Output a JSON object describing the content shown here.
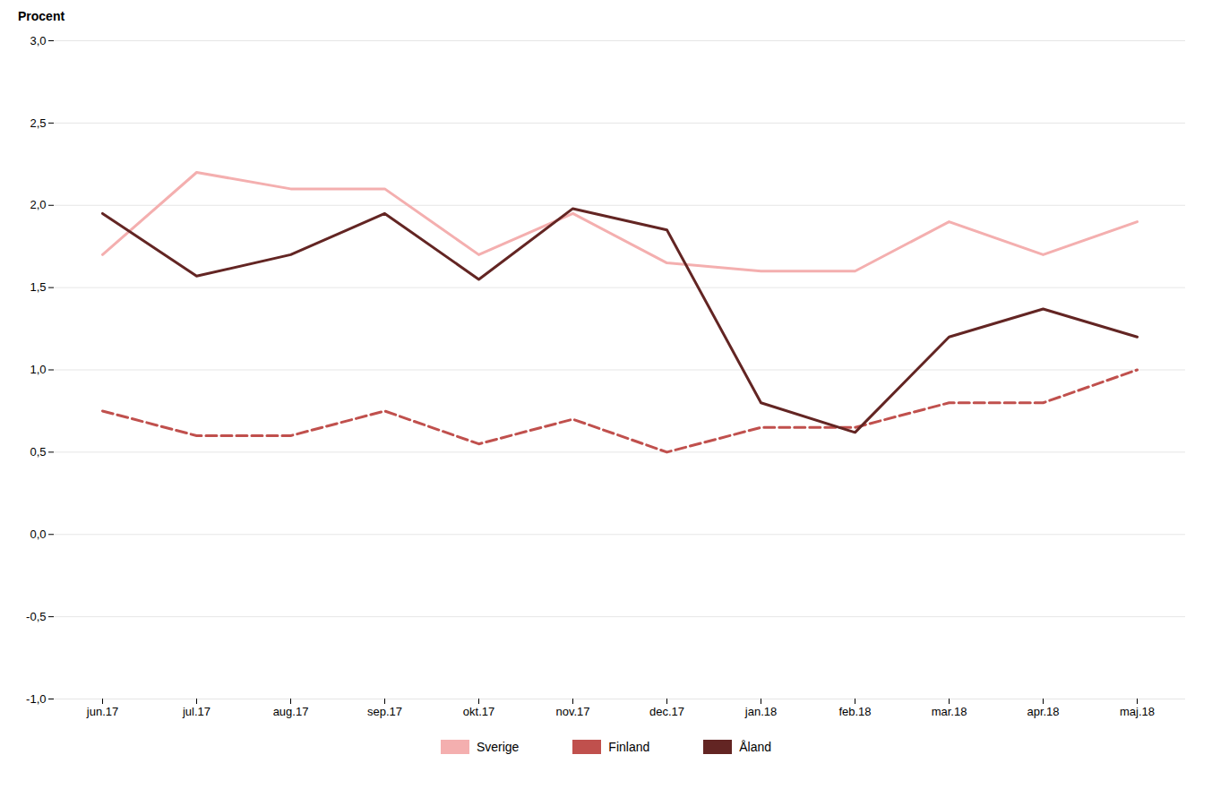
{
  "chart_data": {
    "type": "line",
    "ylabel": "Procent",
    "categories": [
      "jun.17",
      "jul.17",
      "aug.17",
      "sep.17",
      "okt.17",
      "nov.17",
      "dec.17",
      "jan.18",
      "feb.18",
      "mar.18",
      "apr.18",
      "maj.18"
    ],
    "series": [
      {
        "name": "Sverige",
        "color": "#F4AFAF",
        "line_style": "solid",
        "values": [
          1.7,
          2.2,
          2.1,
          2.1,
          1.7,
          1.95,
          1.65,
          1.6,
          1.6,
          1.9,
          1.7,
          1.9
        ]
      },
      {
        "name": "Finland",
        "color": "#C0504D",
        "line_style": "dashed",
        "values": [
          0.75,
          0.6,
          0.6,
          0.75,
          0.55,
          0.7,
          0.5,
          0.65,
          0.65,
          0.8,
          0.8,
          1.0
        ]
      },
      {
        "name": "Åland",
        "color": "#632523",
        "line_style": "solid",
        "values": [
          1.95,
          1.57,
          1.7,
          1.95,
          1.55,
          1.98,
          1.85,
          0.8,
          0.62,
          1.2,
          1.37,
          1.2
        ]
      }
    ],
    "ylim": [
      -1.0,
      3.0
    ],
    "yticks": [
      {
        "value": -1.0,
        "label": "-1,0"
      },
      {
        "value": -0.5,
        "label": "-0,5"
      },
      {
        "value": 0.0,
        "label": "0,0"
      },
      {
        "value": 0.5,
        "label": "0,5"
      },
      {
        "value": 1.0,
        "label": "1,0"
      },
      {
        "value": 1.5,
        "label": "1,5"
      },
      {
        "value": 2.0,
        "label": "2,0"
      },
      {
        "value": 2.5,
        "label": "2,5"
      },
      {
        "value": 3.0,
        "label": "3,0"
      }
    ],
    "grid": true,
    "legend": "bottom"
  }
}
